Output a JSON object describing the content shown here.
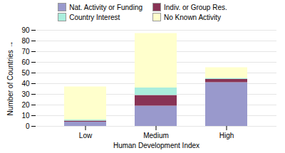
{
  "chart_data": {
    "type": "bar",
    "stacked": true,
    "categories": [
      "Low",
      "Medium",
      "High"
    ],
    "series": [
      {
        "name": "Nat. Activity or Funding",
        "color": "#9999cc",
        "values": [
          4,
          19,
          41
        ]
      },
      {
        "name": "Indiv. or Group Res.",
        "color": "#883355",
        "values": [
          1,
          10,
          3
        ]
      },
      {
        "name": "Country Interest",
        "color": "#aaeedd",
        "values": [
          1,
          7,
          1
        ]
      },
      {
        "name": "No Known Activity",
        "color": "#ffffcc",
        "values": [
          31,
          51,
          10
        ]
      }
    ],
    "xlabel": "Human Development Index",
    "ylabel": "Number of Countries",
    "ylim": [
      0,
      90
    ],
    "yticks": [
      0,
      10,
      20,
      30,
      40,
      50,
      60,
      70,
      80,
      90
    ],
    "grid": true,
    "legend": "top"
  }
}
